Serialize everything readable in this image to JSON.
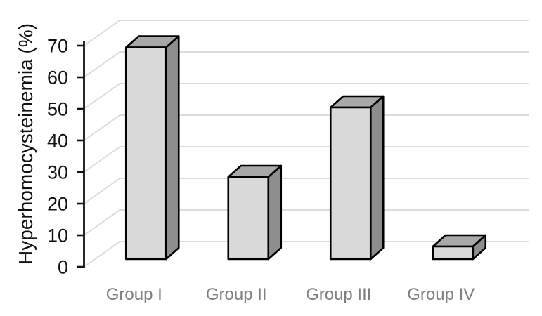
{
  "figure": {
    "background": "#ffffff"
  },
  "chart_data": {
    "type": "bar",
    "variant": "3d-column",
    "title": "",
    "xlabel": "",
    "ylabel": "Hyperhomocysteinemia (%)",
    "categories": [
      "Group I",
      "Group II",
      "Group III",
      "Group IV"
    ],
    "values": [
      67,
      26,
      48,
      4
    ],
    "ylim": [
      0,
      70
    ],
    "yticks": [
      0,
      10,
      20,
      30,
      40,
      50,
      60,
      70
    ],
    "grid": true,
    "legend": false,
    "colors": {
      "axis": "#111111",
      "tick_label": "#111111",
      "axis_title": "#111111",
      "category_label": "#7f7f7f",
      "gridline": "#dcdcdc",
      "bar_front": "#d9d9d9",
      "bar_top": "#a8a8a8",
      "bar_side": "#8e8e8e",
      "bar_outline": "#000000"
    }
  }
}
